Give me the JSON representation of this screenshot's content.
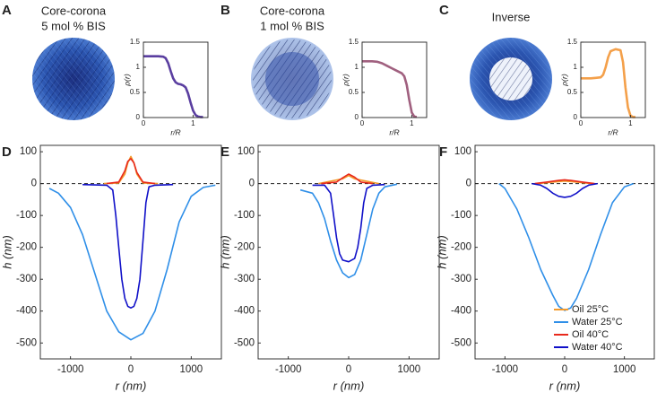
{
  "chart_data": [
    {
      "type": "line",
      "panel": "A",
      "title": [
        "Core-corona",
        "5 mol % BIS"
      ],
      "xlabel": "r/R",
      "ylabel": "ρ(r)",
      "xlim": [
        0,
        1.3
      ],
      "xticks": [
        0,
        1
      ],
      "ylim": [
        0,
        1.5
      ],
      "yticks": [
        0,
        0.5,
        1,
        1.5
      ],
      "color": "#5a3ea0",
      "x": [
        0,
        0.1,
        0.2,
        0.3,
        0.4,
        0.45,
        0.5,
        0.55,
        0.6,
        0.65,
        0.7,
        0.75,
        0.8,
        0.85,
        0.9,
        0.95,
        1.0,
        1.05,
        1.1,
        1.15,
        1.2
      ],
      "values": [
        1.22,
        1.22,
        1.22,
        1.22,
        1.21,
        1.18,
        1.08,
        0.92,
        0.78,
        0.7,
        0.67,
        0.66,
        0.64,
        0.6,
        0.48,
        0.3,
        0.14,
        0.05,
        0.02,
        0.01,
        0.01
      ]
    },
    {
      "type": "line",
      "panel": "B",
      "title": [
        "Core-corona",
        "1 mol % BIS"
      ],
      "xlabel": "r/R",
      "ylabel": "ρ(r)",
      "xlim": [
        0,
        1.3
      ],
      "xticks": [
        0,
        1
      ],
      "ylim": [
        0,
        1.5
      ],
      "yticks": [
        0,
        0.5,
        1,
        1.5
      ],
      "color": "#a0607f",
      "x": [
        0,
        0.1,
        0.2,
        0.3,
        0.4,
        0.5,
        0.6,
        0.7,
        0.8,
        0.85,
        0.9,
        0.95,
        1.0,
        1.05,
        1.1
      ],
      "values": [
        1.12,
        1.12,
        1.12,
        1.11,
        1.08,
        1.03,
        0.98,
        0.93,
        0.88,
        0.82,
        0.65,
        0.35,
        0.1,
        0.02,
        0.01
      ]
    },
    {
      "type": "line",
      "panel": "C",
      "title": [
        "Inverse"
      ],
      "xlabel": "r/R",
      "ylabel": "ρ(r)",
      "xlim": [
        0,
        1.3
      ],
      "xticks": [
        0,
        1
      ],
      "ylim": [
        0,
        1.5
      ],
      "yticks": [
        0,
        0.5,
        1,
        1.5
      ],
      "color": "#f4a04a",
      "x": [
        0,
        0.1,
        0.2,
        0.3,
        0.4,
        0.45,
        0.5,
        0.55,
        0.6,
        0.7,
        0.8,
        0.85,
        0.9,
        0.95,
        1.0,
        1.05,
        1.1
      ],
      "values": [
        0.78,
        0.78,
        0.78,
        0.79,
        0.8,
        0.85,
        1.0,
        1.2,
        1.32,
        1.36,
        1.34,
        1.1,
        0.6,
        0.2,
        0.04,
        0.01,
        0.01
      ]
    },
    {
      "type": "line",
      "panel": "D",
      "xlabel": "r (nm)",
      "ylabel": "h (nm)",
      "xlim": [
        -1500,
        1500
      ],
      "xticks": [
        -1000,
        0,
        1000
      ],
      "ylim": [
        -550,
        120
      ],
      "yticks": [
        -500,
        -400,
        -300,
        -200,
        -100,
        0,
        100
      ],
      "series": [
        {
          "color": "#2f8fe8",
          "x": [
            -1350,
            -1200,
            -1000,
            -800,
            -600,
            -400,
            -200,
            0,
            200,
            400,
            600,
            800,
            1000,
            1200,
            1400
          ],
          "values": [
            -15,
            -30,
            -75,
            -160,
            -280,
            -400,
            -465,
            -490,
            -470,
            -400,
            -270,
            -120,
            -40,
            -12,
            -5
          ]
        },
        {
          "color": "#1010c8",
          "x": [
            -800,
            -400,
            -300,
            -250,
            -200,
            -150,
            -100,
            -50,
            0,
            50,
            100,
            150,
            200,
            250,
            300,
            400,
            700
          ],
          "values": [
            -3,
            -5,
            -20,
            -100,
            -200,
            -300,
            -360,
            -385,
            -390,
            -385,
            -360,
            -300,
            -180,
            -60,
            -10,
            -5,
            -3
          ]
        },
        {
          "color": "#f39a2b",
          "x": [
            -450,
            -200,
            -100,
            -50,
            0,
            50,
            100,
            200,
            450
          ],
          "values": [
            0,
            2,
            30,
            65,
            85,
            65,
            30,
            2,
            0
          ]
        },
        {
          "color": "#e8291c",
          "x": [
            -400,
            -200,
            -100,
            -50,
            0,
            50,
            100,
            200,
            400
          ],
          "values": [
            0,
            5,
            40,
            70,
            78,
            65,
            35,
            5,
            0
          ]
        }
      ]
    },
    {
      "type": "line",
      "panel": "E",
      "xlabel": "r (nm)",
      "ylabel": "h (nm)",
      "xlim": [
        -1500,
        1500
      ],
      "xticks": [
        -1000,
        0,
        1000
      ],
      "ylim": [
        -550,
        120
      ],
      "yticks": [
        -500,
        -400,
        -300,
        -200,
        -100,
        0,
        100
      ],
      "series": [
        {
          "color": "#2f8fe8",
          "x": [
            -800,
            -600,
            -500,
            -400,
            -300,
            -200,
            -100,
            0,
            100,
            200,
            300,
            400,
            500,
            600,
            800
          ],
          "values": [
            -20,
            -30,
            -60,
            -110,
            -180,
            -240,
            -280,
            -295,
            -285,
            -240,
            -160,
            -80,
            -30,
            -10,
            -2
          ]
        },
        {
          "color": "#1010c8",
          "x": [
            -600,
            -400,
            -300,
            -250,
            -200,
            -150,
            -100,
            0,
            100,
            150,
            200,
            250,
            300,
            400,
            600
          ],
          "values": [
            -5,
            -5,
            -30,
            -100,
            -170,
            -220,
            -240,
            -245,
            -235,
            -200,
            -140,
            -60,
            -15,
            -5,
            -3
          ]
        },
        {
          "color": "#f39a2b",
          "x": [
            -500,
            -100,
            0,
            100,
            500
          ],
          "values": [
            0,
            15,
            25,
            15,
            0
          ]
        },
        {
          "color": "#e8291c",
          "x": [
            -450,
            -200,
            -100,
            0,
            100,
            200,
            400
          ],
          "values": [
            0,
            5,
            18,
            30,
            20,
            5,
            0
          ]
        }
      ]
    },
    {
      "type": "line",
      "panel": "F",
      "xlabel": "r (nm)",
      "ylabel": "h (nm)",
      "legend": "lower right",
      "xlim": [
        -1500,
        1500
      ],
      "xticks": [
        -1000,
        0,
        1000
      ],
      "ylim": [
        -550,
        120
      ],
      "yticks": [
        -500,
        -400,
        -300,
        -200,
        -100,
        0,
        100
      ],
      "series": [
        {
          "name": "Oil 25°C",
          "color": "#f39a2b",
          "x": [
            -450,
            -200,
            0,
            200,
            450
          ],
          "values": [
            0,
            5,
            8,
            5,
            0
          ]
        },
        {
          "name": "Water 25°C",
          "color": "#2f8fe8",
          "x": [
            -1100,
            -1000,
            -800,
            -600,
            -400,
            -200,
            -100,
            0,
            100,
            200,
            400,
            600,
            800,
            1000,
            1150
          ],
          "values": [
            0,
            -15,
            -80,
            -170,
            -270,
            -350,
            -385,
            -398,
            -390,
            -360,
            -270,
            -160,
            -60,
            -10,
            0
          ]
        },
        {
          "name": "Oil 40°C",
          "color": "#e8291c",
          "x": [
            -500,
            -300,
            -100,
            0,
            100,
            300,
            500
          ],
          "values": [
            0,
            5,
            10,
            12,
            10,
            5,
            0
          ]
        },
        {
          "name": "Water 40°C",
          "color": "#1010c8",
          "x": [
            -550,
            -400,
            -300,
            -200,
            -100,
            0,
            100,
            200,
            300,
            400,
            550
          ],
          "values": [
            0,
            -5,
            -15,
            -30,
            -40,
            -43,
            -40,
            -30,
            -15,
            -5,
            0
          ]
        }
      ]
    }
  ]
}
